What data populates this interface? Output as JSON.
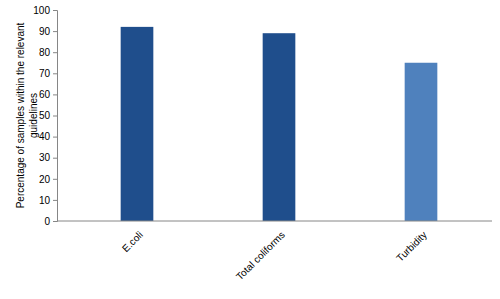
{
  "chart_data": {
    "type": "bar",
    "y_label": "Percentage of samples within the relevant guidelines",
    "categories": [
      "E.coli",
      "Total coliforms",
      "Turbidity"
    ],
    "values": [
      92,
      89,
      75
    ],
    "colors": [
      "#1f4e8c",
      "#1f4e8c",
      "#4f81bd"
    ],
    "ylim": [
      0,
      100
    ],
    "yticks": [
      0,
      10,
      20,
      30,
      40,
      50,
      60,
      70,
      80,
      90,
      100
    ],
    "grid": false
  }
}
